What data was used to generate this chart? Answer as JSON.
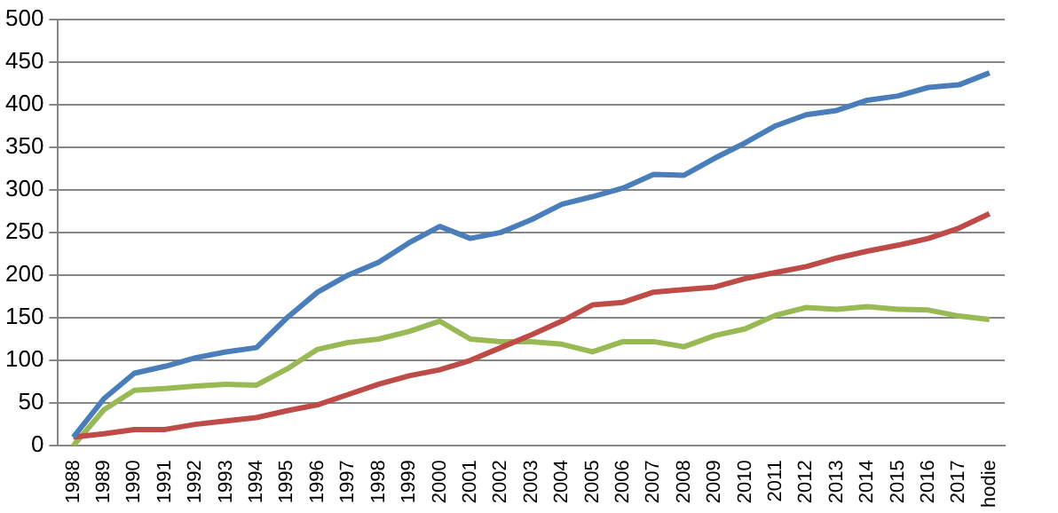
{
  "chart_data": {
    "type": "line",
    "categories": [
      "1988",
      "1989",
      "1990",
      "1991",
      "1992",
      "1993",
      "1994",
      "1995",
      "1996",
      "1997",
      "1998",
      "1999",
      "2000",
      "2001",
      "2002",
      "2003",
      "2004",
      "2005",
      "2006",
      "2007",
      "2008",
      "2009",
      "2010",
      "2011",
      "2012",
      "2013",
      "2014",
      "2015",
      "2016",
      "2017",
      "hodie"
    ],
    "series": [
      {
        "color": "#4a7ebb",
        "values": [
          10,
          55,
          85,
          93,
          103,
          110,
          115,
          150,
          180,
          200,
          215,
          238,
          257,
          243,
          250,
          265,
          283,
          292,
          302,
          318,
          317,
          337,
          355,
          375,
          388,
          393,
          405,
          410,
          420,
          423,
          437
        ]
      },
      {
        "color": "#be4b48",
        "values": [
          10,
          14,
          19,
          19,
          25,
          29,
          33,
          41,
          48,
          60,
          72,
          82,
          89,
          100,
          115,
          130,
          146,
          165,
          168,
          180,
          183,
          186,
          196,
          203,
          210,
          220,
          228,
          235,
          243,
          255,
          272
        ]
      },
      {
        "color": "#98b954",
        "values": [
          0,
          42,
          65,
          67,
          70,
          72,
          71,
          90,
          113,
          121,
          125,
          134,
          146,
          125,
          122,
          122,
          119,
          110,
          122,
          122,
          116,
          129,
          137,
          153,
          162,
          160,
          163,
          160,
          159,
          152,
          148
        ]
      }
    ],
    "ylim": [
      0,
      500
    ],
    "yticks": [
      0,
      50,
      100,
      150,
      200,
      250,
      300,
      350,
      400,
      450,
      500
    ],
    "grid": "y",
    "legend": false,
    "marker": "none",
    "line_style": "solid"
  }
}
